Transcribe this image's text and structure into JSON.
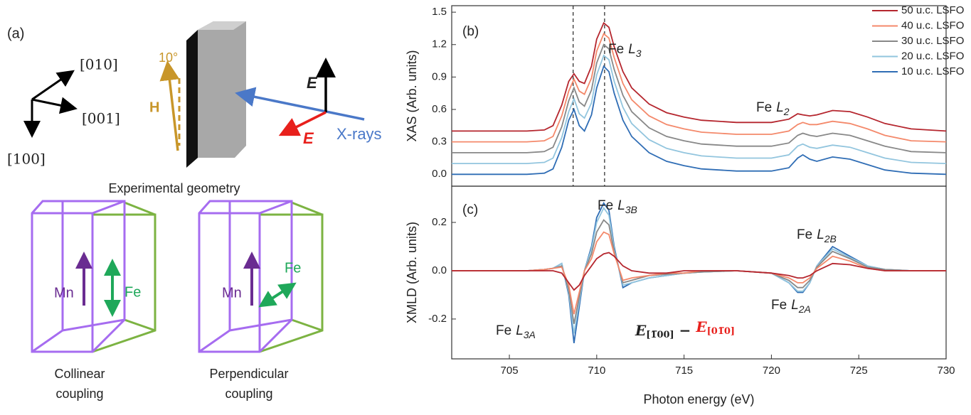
{
  "diagram": {
    "panel_label": "(a)",
    "axes": [
      "[010]",
      "[001]",
      "[100]"
    ],
    "angle": "10°",
    "field": "H",
    "polarization": [
      "E",
      "E"
    ],
    "beam": "X-rays",
    "caption": "Experimental geometry",
    "couplings": [
      {
        "mn": "Mn",
        "fe": "Fe",
        "caption": [
          "Collinear",
          "coupling"
        ]
      },
      {
        "mn": "Mn",
        "fe": "Fe",
        "caption": [
          "Perpendicular",
          "coupling"
        ]
      }
    ]
  },
  "chart_data": [
    {
      "type": "line",
      "panel_label": "(b)",
      "ylabel": "XAS (Arb. units)",
      "legend": "upper right",
      "xlim": [
        701.7,
        730
      ],
      "ylim": [
        -0.11,
        1.56
      ],
      "yticks": [
        {
          "value": 0,
          "label": "0.0"
        },
        0.3,
        0.6,
        0.9,
        1.2,
        1.5
      ],
      "vlines": [
        708.65,
        710.45
      ],
      "annotations": [
        {
          "text": "Fe",
          "italic": "L",
          "sub": "3"
        },
        {
          "text": "Fe",
          "italic": "L",
          "sub": "2"
        }
      ],
      "x": [
        701.7,
        703,
        705,
        706,
        707,
        707.5,
        708,
        708.4,
        708.7,
        709,
        709.3,
        709.7,
        710,
        710.4,
        710.7,
        711,
        711.5,
        712,
        713,
        714,
        715,
        716,
        718,
        720,
        721,
        721.5,
        721.8,
        722.2,
        722.6,
        723.5,
        724.5,
        725.5,
        726.5,
        728,
        730
      ],
      "series": [
        {
          "name": "50 u.c. LSFO",
          "color": "#b5262e",
          "values": [
            0.4,
            0.4,
            0.4,
            0.4,
            0.41,
            0.45,
            0.64,
            0.86,
            0.93,
            0.86,
            0.84,
            1.0,
            1.25,
            1.4,
            1.36,
            1.18,
            0.95,
            0.8,
            0.65,
            0.57,
            0.53,
            0.5,
            0.48,
            0.48,
            0.51,
            0.56,
            0.55,
            0.54,
            0.55,
            0.59,
            0.58,
            0.53,
            0.47,
            0.42,
            0.4
          ]
        },
        {
          "name": "40 u.c. LSFO",
          "color": "#f4896b",
          "values": [
            0.3,
            0.3,
            0.3,
            0.3,
            0.31,
            0.35,
            0.54,
            0.77,
            0.88,
            0.77,
            0.74,
            0.89,
            1.14,
            1.3,
            1.26,
            1.08,
            0.84,
            0.69,
            0.54,
            0.46,
            0.42,
            0.39,
            0.37,
            0.37,
            0.4,
            0.46,
            0.48,
            0.46,
            0.46,
            0.49,
            0.47,
            0.42,
            0.36,
            0.31,
            0.3
          ]
        },
        {
          "name": "30 u.c. LSFO",
          "color": "#888888",
          "values": [
            0.2,
            0.2,
            0.2,
            0.2,
            0.21,
            0.25,
            0.44,
            0.68,
            0.8,
            0.67,
            0.63,
            0.78,
            1.03,
            1.2,
            1.16,
            0.97,
            0.73,
            0.58,
            0.43,
            0.35,
            0.31,
            0.28,
            0.26,
            0.26,
            0.29,
            0.36,
            0.38,
            0.36,
            0.35,
            0.38,
            0.36,
            0.31,
            0.26,
            0.21,
            0.2
          ]
        },
        {
          "name": "20 u.c. LSFO",
          "color": "#92c5de",
          "values": [
            0.1,
            0.1,
            0.1,
            0.1,
            0.11,
            0.15,
            0.34,
            0.58,
            0.7,
            0.56,
            0.52,
            0.66,
            0.92,
            1.1,
            1.06,
            0.86,
            0.62,
            0.47,
            0.32,
            0.24,
            0.2,
            0.17,
            0.15,
            0.15,
            0.18,
            0.26,
            0.28,
            0.25,
            0.24,
            0.27,
            0.25,
            0.2,
            0.15,
            0.11,
            0.1
          ]
        },
        {
          "name": "10 u.c. LSFO",
          "color": "#2f6db5",
          "values": [
            0,
            0,
            0,
            0,
            0.01,
            0.05,
            0.25,
            0.5,
            0.6,
            0.45,
            0.4,
            0.55,
            0.8,
            1.0,
            0.95,
            0.75,
            0.5,
            0.35,
            0.2,
            0.12,
            0.08,
            0.05,
            0.03,
            0.03,
            0.06,
            0.15,
            0.18,
            0.14,
            0.12,
            0.16,
            0.14,
            0.09,
            0.04,
            0.01,
            0
          ]
        }
      ]
    },
    {
      "type": "line",
      "panel_label": "(c)",
      "ylabel": "XMLD (Arb. units)",
      "xlabel": "Photon energy (eV)",
      "xlim": [
        701.7,
        730
      ],
      "xticks": [
        705,
        710,
        715,
        720,
        725,
        730
      ],
      "ylim": [
        -0.365,
        0.35
      ],
      "yticks": [
        -0.2,
        {
          "value": 0,
          "label": "0.0"
        },
        0.2
      ],
      "annotations": [
        {
          "text": "Fe",
          "italic": "L",
          "sub": "3B"
        },
        {
          "text": "Fe",
          "italic": "L",
          "sub": "2B"
        },
        {
          "text": "Fe",
          "italic": "L",
          "sub": "3A"
        },
        {
          "text": "Fe",
          "italic": "L",
          "sub": "2A"
        }
      ],
      "formula": [
        "E",
        "[1̅00]",
        " − ",
        "E",
        "[01̅0]"
      ],
      "x": [
        701.7,
        703,
        705,
        706,
        707,
        707.5,
        708,
        708.4,
        708.7,
        709,
        709.3,
        709.7,
        710,
        710.4,
        710.7,
        711,
        711.5,
        712,
        713,
        714,
        715,
        716,
        718,
        720,
        721,
        721.5,
        721.8,
        722.2,
        722.6,
        723.5,
        724.5,
        725.5,
        726.5,
        728,
        730
      ],
      "series": [
        {
          "color": "#b5262e",
          "values": [
            0,
            0,
            0,
            0,
            0,
            0,
            -0.01,
            -0.05,
            -0.08,
            -0.06,
            -0.02,
            0.02,
            0.05,
            0.07,
            0.075,
            0.06,
            0.02,
            0,
            -0.01,
            -0.01,
            0,
            0,
            0,
            -0.01,
            -0.02,
            -0.03,
            -0.03,
            -0.02,
            0,
            0.03,
            0.025,
            0.01,
            0,
            0,
            0
          ]
        },
        {
          "color": "#f4896b",
          "values": [
            0,
            0,
            0,
            0,
            0.005,
            0.01,
            0.015,
            -0.06,
            -0.18,
            -0.09,
            0,
            0.05,
            0.12,
            0.16,
            0.15,
            0.07,
            -0.04,
            -0.03,
            -0.02,
            -0.01,
            -0.01,
            0,
            0,
            -0.01,
            -0.03,
            -0.05,
            -0.05,
            -0.03,
            0.01,
            0.06,
            0.04,
            0.01,
            0,
            0,
            0
          ]
        },
        {
          "color": "#888888",
          "values": [
            0,
            0,
            0,
            0,
            0.005,
            0.01,
            0.02,
            -0.08,
            -0.22,
            -0.11,
            0,
            0.07,
            0.16,
            0.21,
            0.19,
            0.08,
            -0.05,
            -0.04,
            -0.02,
            -0.015,
            -0.01,
            -0.005,
            0,
            -0.01,
            -0.04,
            -0.07,
            -0.07,
            -0.04,
            0.015,
            0.08,
            0.05,
            0.015,
            0.005,
            0,
            0
          ]
        },
        {
          "color": "#92c5de",
          "values": [
            0,
            0,
            0,
            0,
            0.005,
            0.01,
            0.03,
            -0.09,
            -0.26,
            -0.13,
            0,
            0.09,
            0.2,
            0.26,
            0.23,
            0.09,
            -0.06,
            -0.05,
            -0.03,
            -0.02,
            -0.01,
            -0.005,
            0,
            -0.01,
            -0.05,
            -0.085,
            -0.085,
            -0.05,
            0.02,
            0.09,
            0.055,
            0.02,
            0.005,
            0,
            0
          ]
        },
        {
          "color": "#2f6db5",
          "values": [
            0,
            0,
            0,
            0,
            0.005,
            0.01,
            0.03,
            -0.1,
            -0.3,
            -0.15,
            0,
            0.1,
            0.22,
            0.28,
            0.25,
            0.1,
            -0.07,
            -0.05,
            -0.03,
            -0.02,
            -0.01,
            -0.005,
            0,
            -0.01,
            -0.05,
            -0.09,
            -0.09,
            -0.05,
            0.02,
            0.1,
            0.06,
            0.02,
            0.005,
            0,
            0
          ]
        }
      ]
    }
  ]
}
